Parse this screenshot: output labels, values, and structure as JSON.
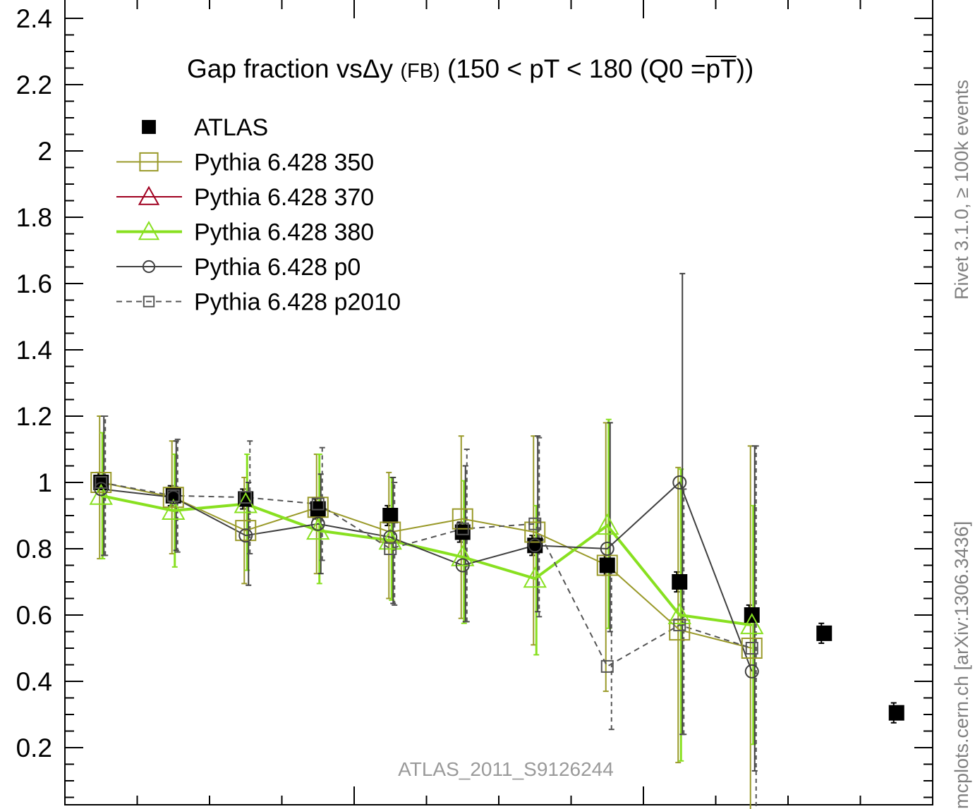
{
  "side_labels": {
    "top_right": "Rivet 3.1.0, ≥ 100k events",
    "bottom_right": "mcplots.cern.ch [arXiv:1306.3436]"
  },
  "chart_data": {
    "type": "scatter",
    "title_main": "Gap fraction vs",
    "title_symbol": "Δy",
    "title_small": "(FB)",
    "title_range": "(150 < pT < 180 (Q0 =",
    "title_bar": "pT",
    "title_close": "))",
    "watermark": "ATLAS_2011_S9126244",
    "xlim": [
      0,
      12
    ],
    "ylim": [
      0,
      2.45
    ],
    "yticks": [
      0.2,
      0.4,
      0.6,
      0.8,
      1,
      1.2,
      1.4,
      1.6,
      1.8,
      2,
      2.2,
      2.4
    ],
    "ytick_labels": [
      "0.2",
      "0.4",
      "0.6",
      "0.8",
      "1",
      "1.2",
      "1.4",
      "1.6",
      "1.8",
      "2",
      "2.2",
      "2.4"
    ],
    "x": [
      0.5,
      1.5,
      2.5,
      3.5,
      4.5,
      5.5,
      6.5,
      7.5,
      8.5,
      9.5,
      10.5,
      11.5
    ],
    "grid": false,
    "legend_position": "top-left",
    "series": [
      {
        "name": "ATLAS",
        "color": "#000000",
        "marker": "filled-square",
        "line": "none",
        "values": [
          1.0,
          0.96,
          0.95,
          0.92,
          0.9,
          0.85,
          0.81,
          0.75,
          0.7,
          0.6,
          0.545,
          0.305
        ],
        "err": [
          0.03,
          0.03,
          0.03,
          0.03,
          0.03,
          0.03,
          0.03,
          0.03,
          0.03,
          0.03,
          0.03,
          0.03
        ]
      },
      {
        "name": "Pythia 6.428 350",
        "color": "#9a9a2a",
        "marker": "open-square",
        "line": "solid",
        "width": 2,
        "values": [
          1.0,
          0.955,
          0.855,
          0.925,
          0.85,
          0.89,
          0.85,
          0.75,
          0.555,
          0.5
        ],
        "err_low": [
          0.23,
          0.17,
          0.16,
          0.2,
          0.2,
          0.3,
          0.34,
          0.38,
          0.4,
          0.5
        ],
        "err_high": [
          0.2,
          0.17,
          0.16,
          0.16,
          0.18,
          0.25,
          0.29,
          0.43,
          0.49,
          0.61
        ]
      },
      {
        "name": "Pythia 6.428 370",
        "color": "#a00020",
        "marker": "open-triangle",
        "line": "solid",
        "width": 2,
        "values": [],
        "err_low": [],
        "err_high": []
      },
      {
        "name": "Pythia 6.428 380",
        "color": "#88e020",
        "marker": "open-triangle",
        "line": "solid",
        "width": 4,
        "values": [
          0.96,
          0.915,
          0.935,
          0.855,
          0.825,
          0.775,
          0.71,
          0.87,
          0.6,
          0.57
        ],
        "err_low": [
          0.19,
          0.17,
          0.2,
          0.16,
          0.18,
          0.2,
          0.23,
          0.31,
          0.44,
          0.36
        ],
        "err_high": [
          0.19,
          0.17,
          0.15,
          0.23,
          0.19,
          0.23,
          0.22,
          0.32,
          0.44,
          0.36
        ]
      },
      {
        "name": "Pythia 6.428 p0",
        "color": "#404040",
        "marker": "open-circle",
        "line": "solid",
        "width": 2,
        "values": [
          0.98,
          0.955,
          0.84,
          0.875,
          0.835,
          0.75,
          0.81,
          0.8,
          1.0,
          0.43
        ],
        "err_low": [
          0.2,
          0.16,
          0.15,
          0.15,
          0.2,
          0.17,
          0.2,
          0.25,
          0.76,
          0.3
        ],
        "err_high": [
          0.22,
          0.17,
          0.16,
          0.15,
          0.18,
          0.3,
          0.33,
          0.38,
          0.63,
          0.68
        ]
      },
      {
        "name": "Pythia 6.428 p2010",
        "color": "#555555",
        "marker": "open-square-small",
        "line": "dashed",
        "width": 2,
        "values": [
          1.0,
          0.96,
          0.955,
          0.935,
          0.8,
          0.86,
          0.875,
          0.445,
          0.57,
          0.5
        ],
        "err_low": [
          0.22,
          0.17,
          0.17,
          0.17,
          0.17,
          0.28,
          0.28,
          0.19,
          0.33,
          0.5
        ],
        "err_high": [
          0.2,
          0.17,
          0.17,
          0.17,
          0.2,
          0.24,
          0.26,
          0.3,
          0.41,
          0.61
        ]
      }
    ]
  }
}
